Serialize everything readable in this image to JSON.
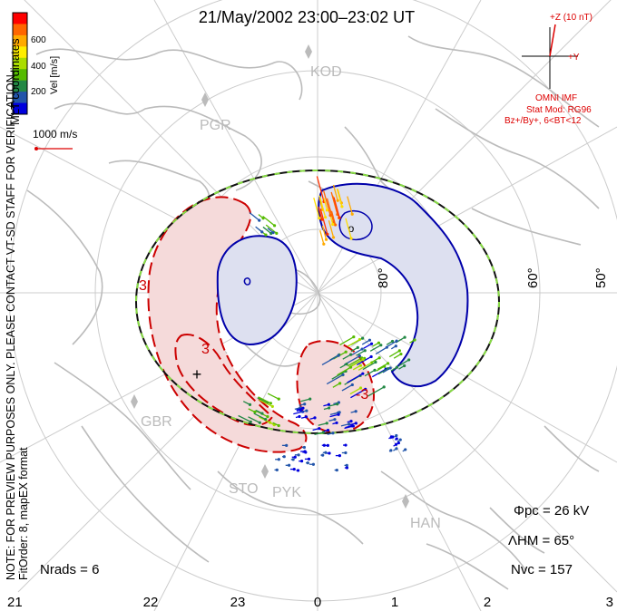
{
  "title": "21/May/2002 23:00–23:02 UT",
  "side_note": {
    "line1": "NOTE: FOR PREVIEW PURPOSES ONLY. PLEASE CONTACT VT-SD STAFF FOR VERIFICATION.",
    "line2": "FitOrder: 8, mapEX format"
  },
  "coordinates_label": "MLT coordinates",
  "color_scale": {
    "label": "Vel [m/s]",
    "ticks": [
      "600",
      "400",
      "200"
    ],
    "colors": [
      "#ff0000",
      "#ff6600",
      "#ffaa00",
      "#ffee00",
      "#aadd00",
      "#55bb00",
      "#228844",
      "#2255aa",
      "#0000dd"
    ]
  },
  "velocity_scale_label": "1000 m/s",
  "imf": {
    "z_label": "+Z (10 nT)",
    "y_label": "+Y",
    "source": "OMNI IMF",
    "stat_mod": "Stat Mod: RG96",
    "condition": "Bz+/By+, 6<BT<12"
  },
  "stations": [
    "KOD",
    "PGR",
    "GBR",
    "STO",
    "PYK",
    "HAN"
  ],
  "latitude_labels": [
    "80°",
    "60°",
    "50°"
  ],
  "mlt_ticks": [
    "21",
    "22",
    "23",
    "0",
    "1",
    "2",
    "3"
  ],
  "contour_labels": [
    "3",
    "3",
    "-3"
  ],
  "stats": {
    "phi_pc": "Φpc = 26 kV",
    "lambda_hm": "ΛHM = 65°",
    "n_vc": "Nvc = 157",
    "n_rads": "Nrads = 6"
  },
  "colors": {
    "positive_contour": "#cc0000",
    "positive_fill": "#f5dada",
    "negative_contour": "#0000aa",
    "negative_fill": "#dde0f0",
    "boundary": "#111111",
    "boundary_dash": "#88dd44",
    "coastline": "#bbbbbb",
    "grid": "#cccccc",
    "imf_red": "#dd0000"
  }
}
